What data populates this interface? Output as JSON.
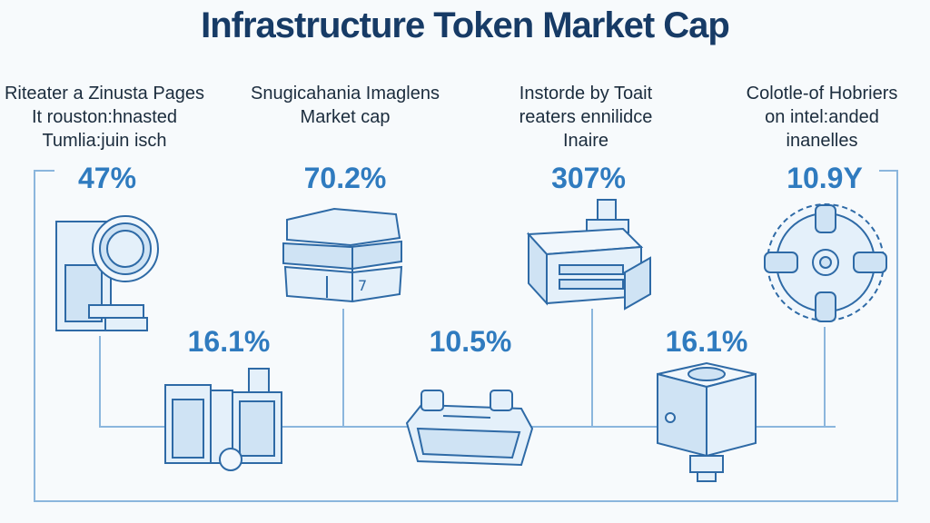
{
  "title": "Infrastructure Token Market Cap",
  "colors": {
    "accent": "#2f7bbf",
    "line": "#8bb6dd",
    "title": "#173b66"
  },
  "top_items": [
    {
      "caption": "Riteater a Zinusta Pages\nIt rouston:hnasted\nTumlia:juin isch",
      "value": "47%",
      "icon": "cooling-fan-unit-icon"
    },
    {
      "caption": "Snugicahania Imaglens\nMarket cap",
      "value": "70.2%",
      "icon": "stacked-boxes-icon"
    },
    {
      "caption": "Instorde by Toait\nreaters ennilidce\nInaire",
      "value": "307%",
      "icon": "server-box-icon"
    },
    {
      "caption": "Colotle-of Hobriers\non intel:anded\ninanelles",
      "value": "10.9Y",
      "icon": "gear-hub-icon"
    }
  ],
  "bottom_items": [
    {
      "value": "16.1%",
      "icon": "server-rack-icon"
    },
    {
      "value": "10.5%",
      "icon": "tray-device-icon"
    },
    {
      "value": "16.1%",
      "icon": "cube-node-icon"
    }
  ]
}
